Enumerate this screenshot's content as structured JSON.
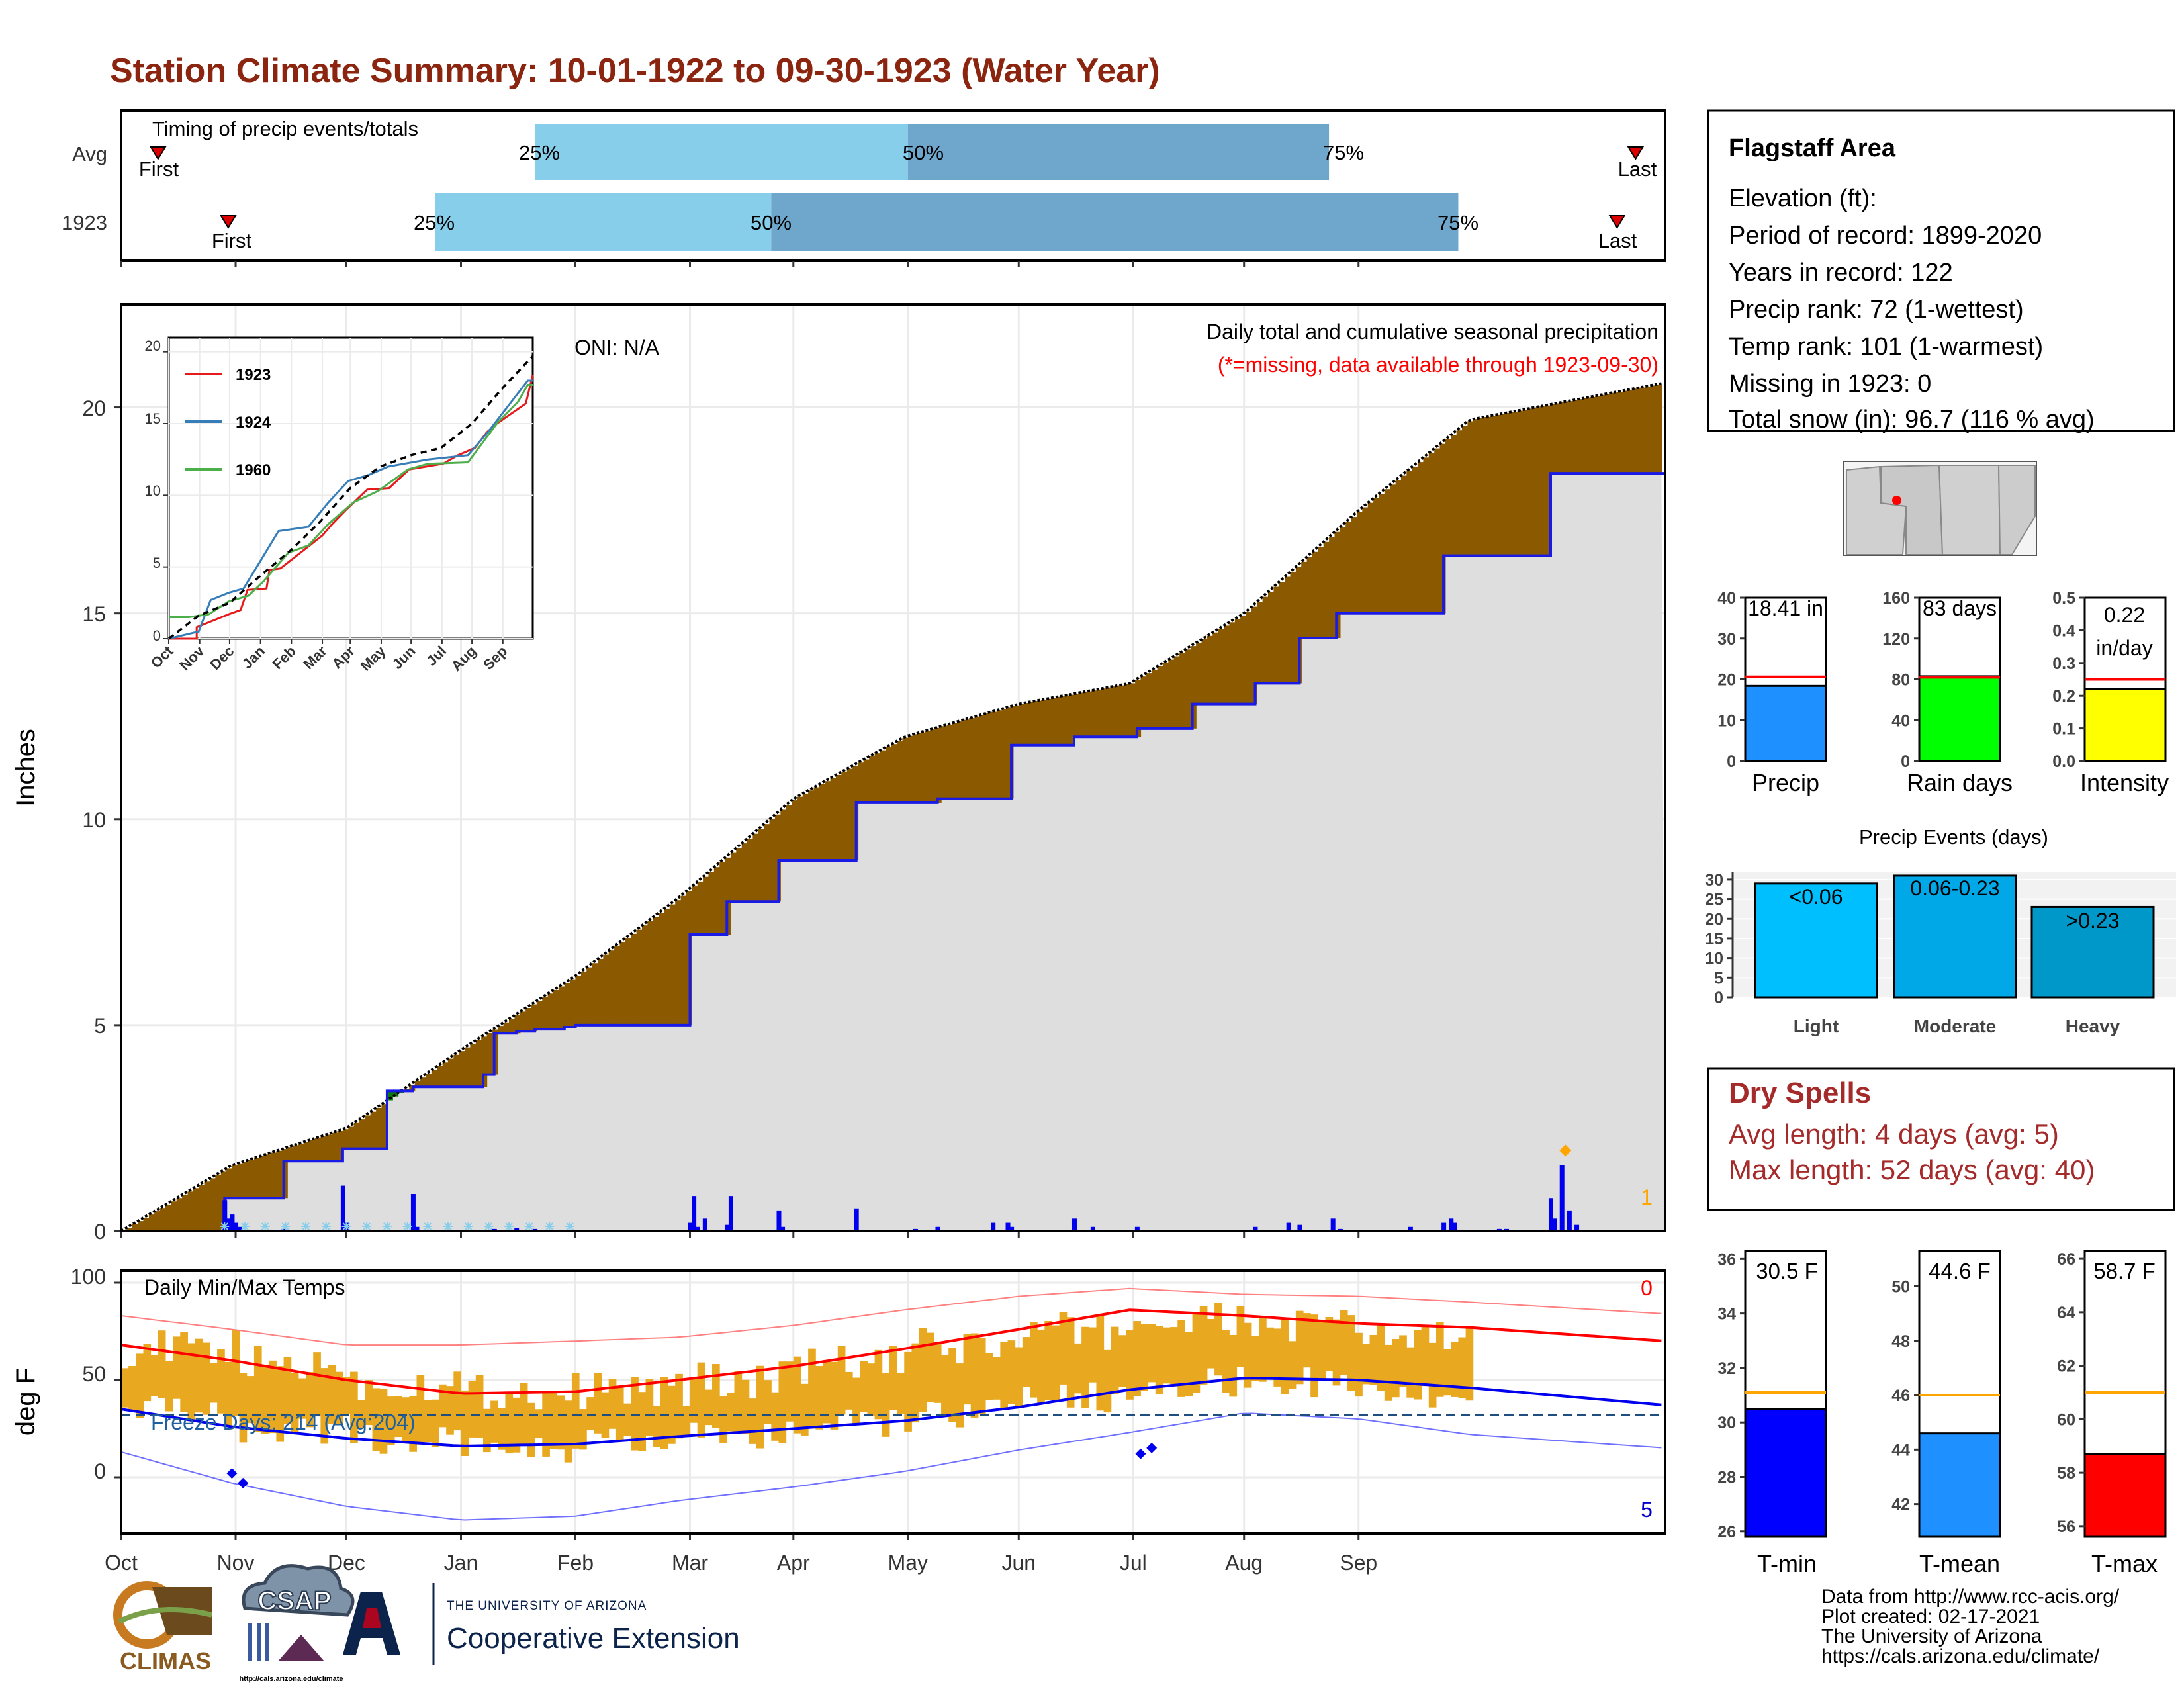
{
  "title": "Station Climate Summary: 10-01-1922 to 09-30-1923 (Water Year)",
  "colors": {
    "title": "#8b2510",
    "cum_current": "#1a1ae6",
    "surplus": "#0a7a0a",
    "deficit": "#8b5a00",
    "area_fill": "#dedede",
    "timing_light": "#87ceeb",
    "timing_dark": "#6fa6cc",
    "temp_bar": "#e8a820",
    "precip_bar": "#1e90ff",
    "raindays_bar": "#00ff00",
    "intensity_bar": "#ffff00",
    "tmin_bar": "#0000ff",
    "tmean_bar": "#1e90ff",
    "tmax_bar": "#ff0000",
    "light": "#00bfff",
    "moderate": "#00a8e8",
    "heavy": "#0098c8"
  },
  "timing": {
    "title": "Timing of precip events/totals",
    "rows": [
      {
        "label": "Avg",
        "first": "First",
        "last": "Last",
        "q25": "25%",
        "q50": "50%",
        "q75": "75%",
        "first_day": 10,
        "q25_day": 112,
        "q50_day": 213,
        "q75_day": 327,
        "last_day": 410
      },
      {
        "label": "1923",
        "first": "First",
        "last": "Last",
        "q25": "25%",
        "q50": "50%",
        "q75": "75%",
        "first_day": 29,
        "q25_day": 85,
        "q50_day": 176,
        "q75_day": 362,
        "last_day": 405
      }
    ]
  },
  "main": {
    "oni": "ONI: N/A",
    "caption": "Daily total and cumulative seasonal precipitation",
    "missing_note": "(*=missing, data available through 1923-09-30)",
    "ylabel": "Inches",
    "yticks": [
      "0",
      "5",
      "10",
      "15",
      "20"
    ],
    "months": [
      "Oct",
      "Nov",
      "Dec",
      "Jan",
      "Feb",
      "Mar",
      "Apr",
      "May",
      "Jun",
      "Jul",
      "Aug",
      "Sep"
    ],
    "right_count": "1"
  },
  "chart_data": [
    {
      "type": "area",
      "title": "Daily total and cumulative seasonal precipitation",
      "ylabel": "Inches",
      "ylim": [
        0,
        22.5
      ],
      "x_units": "day of water year (Oct 1 = 0)",
      "series": [
        {
          "name": "cumulative 1923",
          "x": [
            0,
            28,
            28,
            44,
            44,
            60,
            60,
            72,
            72,
            79,
            79,
            98,
            98,
            101,
            101,
            107,
            107,
            112,
            112,
            120,
            120,
            123,
            123,
            154,
            154,
            164,
            164,
            178,
            178,
            199,
            199,
            221,
            221,
            241,
            241,
            258,
            258,
            275,
            275,
            290,
            290,
            307,
            307,
            319,
            319,
            329,
            329,
            358,
            358,
            387,
            387,
            392,
            392,
            418
          ],
          "y": [
            0,
            0,
            0.8,
            0.8,
            1.7,
            1.7,
            2.0,
            2.0,
            3.4,
            3.4,
            3.5,
            3.5,
            3.8,
            3.8,
            4.8,
            4.8,
            4.85,
            4.85,
            4.9,
            4.9,
            4.95,
            4.95,
            5.0,
            5.0,
            7.2,
            7.2,
            8.0,
            8.0,
            9.0,
            9.0,
            10.4,
            10.4,
            10.5,
            10.5,
            11.8,
            11.8,
            12.0,
            12.0,
            12.2,
            12.2,
            12.8,
            12.8,
            13.3,
            13.3,
            14.4,
            14.4,
            15.0,
            15.0,
            16.4,
            16.4,
            18.4,
            18.4,
            18.4,
            18.4
          ]
        },
        {
          "name": "average cumulative",
          "x": [
            0,
            30,
            61,
            92,
            123,
            151,
            182,
            212,
            243,
            273,
            304,
            335,
            365,
            418
          ],
          "y": [
            0,
            1.6,
            2.5,
            4.4,
            6.2,
            8.1,
            10.5,
            12.0,
            12.8,
            13.3,
            15.0,
            17.5,
            19.7,
            20.6
          ]
        }
      ],
      "daily": {
        "x": [
          28,
          29,
          30,
          31,
          32,
          44,
          60,
          61,
          79,
          80,
          101,
          107,
          112,
          154,
          155,
          156,
          158,
          164,
          165,
          178,
          179,
          199,
          215,
          221,
          236,
          240,
          241,
          258,
          263,
          275,
          307,
          316,
          319,
          328,
          330,
          349,
          358,
          360,
          361,
          373,
          375,
          387,
          388,
          390,
          392,
          394
        ],
        "y": [
          0.75,
          0.3,
          0.4,
          0.2,
          0.1,
          0.05,
          1.1,
          0.2,
          0.9,
          0.1,
          0.05,
          0.08,
          0.05,
          0.2,
          0.85,
          0.1,
          0.3,
          0.15,
          0.85,
          0.5,
          0.1,
          0.55,
          0.05,
          0.1,
          0.2,
          0.2,
          0.1,
          0.3,
          0.1,
          0.1,
          0.1,
          0.2,
          0.15,
          0.3,
          0.05,
          0.1,
          0.2,
          0.3,
          0.2,
          0.05,
          0.05,
          0.8,
          0.3,
          1.6,
          0.5,
          0.15
        ]
      }
    },
    {
      "type": "line",
      "title": "",
      "xlabel": "",
      "ylabel": "",
      "categories": [
        "Oct",
        "Nov",
        "Dec",
        "Jan",
        "Feb",
        "Mar",
        "Apr",
        "May",
        "Jun",
        "Jul",
        "Aug",
        "Sep"
      ],
      "xlim": [
        0,
        365
      ],
      "ylim": [
        0,
        21
      ],
      "yticks": [
        0,
        5,
        10,
        15,
        20
      ],
      "series": [
        {
          "name": "1923",
          "x": [
            0,
            28,
            28,
            60,
            72,
            79,
            98,
            101,
            112,
            154,
            164,
            178,
            199,
            221,
            241,
            258,
            275,
            290,
            307,
            319,
            329,
            358,
            365
          ],
          "y": [
            0,
            0,
            0.8,
            1.7,
            2.0,
            3.4,
            3.5,
            4.8,
            4.9,
            7.2,
            8.0,
            9.0,
            10.4,
            10.5,
            11.8,
            12.0,
            12.2,
            12.8,
            13.3,
            14.4,
            15.0,
            16.4,
            18.4
          ]
        },
        {
          "name": "1924",
          "x": [
            0,
            30,
            42,
            60,
            75,
            90,
            110,
            140,
            160,
            180,
            200,
            220,
            260,
            300,
            320,
            340,
            360,
            365
          ],
          "y": [
            0,
            0.5,
            2.7,
            3.2,
            3.5,
            5.2,
            7.5,
            7.8,
            9.5,
            11.0,
            11.4,
            12.0,
            12.5,
            12.8,
            14.4,
            16.2,
            18.0,
            18.0
          ]
        },
        {
          "name": "1960",
          "x": [
            0,
            20,
            40,
            60,
            80,
            95,
            120,
            140,
            160,
            185,
            210,
            240,
            260,
            300,
            330,
            350,
            360,
            365
          ],
          "y": [
            1.5,
            1.5,
            1.7,
            2.6,
            3.0,
            4.0,
            6.0,
            6.5,
            8.0,
            9.5,
            10.3,
            11.8,
            12.2,
            12.3,
            15.1,
            16.5,
            17.7,
            17.7
          ]
        },
        {
          "name": "Avg",
          "x": [
            0,
            30,
            61,
            92,
            123,
            151,
            182,
            212,
            243,
            273,
            304,
            335,
            365
          ],
          "y": [
            0,
            1.6,
            2.5,
            4.4,
            6.2,
            8.1,
            10.5,
            12.0,
            12.8,
            13.3,
            15.0,
            17.5,
            19.7
          ]
        }
      ]
    },
    {
      "type": "bar",
      "title": "Daily Min/Max Temps",
      "ylabel": "deg F",
      "ylim": [
        -25,
        100
      ],
      "categories": [
        "Oct",
        "Nov",
        "Dec",
        "Jan",
        "Feb",
        "Mar",
        "Apr",
        "May",
        "Jun",
        "Jul",
        "Aug",
        "Sep"
      ],
      "series": [
        {
          "name": "monthly mean daily max",
          "values": [
            66,
            58,
            48,
            44,
            45,
            50,
            58,
            67,
            75,
            80,
            78,
            72
          ]
        },
        {
          "name": "monthly mean daily min",
          "values": [
            34,
            25,
            19,
            15,
            17,
            21,
            27,
            33,
            41,
            49,
            49,
            42
          ]
        },
        {
          "name": "Avg Tmax",
          "x": [
            0,
            30,
            61,
            92,
            123,
            151,
            182,
            212,
            243,
            273,
            304,
            335,
            365,
            418
          ],
          "y": [
            68,
            60,
            50,
            43,
            44,
            50,
            57,
            66,
            76,
            86,
            83,
            79,
            77,
            70
          ]
        },
        {
          "name": "Avg Tmin",
          "x": [
            0,
            30,
            61,
            92,
            123,
            151,
            182,
            212,
            243,
            273,
            304,
            335,
            365,
            418
          ],
          "y": [
            35,
            26,
            20,
            16,
            17,
            21,
            25,
            29,
            36,
            45,
            51,
            50,
            46,
            37
          ]
        },
        {
          "name": "Record high",
          "x": [
            0,
            30,
            61,
            92,
            123,
            151,
            182,
            212,
            243,
            273,
            304,
            335,
            365,
            418
          ],
          "y": [
            83,
            76,
            68,
            68,
            70,
            72,
            78,
            86,
            93,
            97,
            94,
            93,
            90,
            84
          ]
        },
        {
          "name": "Record low",
          "x": [
            0,
            30,
            61,
            92,
            123,
            151,
            182,
            212,
            243,
            273,
            304,
            335,
            365,
            418
          ],
          "y": [
            13,
            -3,
            -15,
            -22,
            -20,
            -12,
            -5,
            3,
            14,
            23,
            33,
            30,
            22,
            15
          ]
        }
      ],
      "freeze_line": 32,
      "freeze_days_label": "Freeze Days: 214 (Avg:204)",
      "count_top": "0",
      "count_bottom": "5"
    },
    {
      "type": "bar",
      "title": "",
      "categories": [
        "Precip",
        "Rain days",
        "Intensity"
      ],
      "values": [
        18.41,
        83,
        0.22
      ],
      "avg": [
        20.6,
        82,
        0.25
      ],
      "ylims": [
        [
          0,
          40
        ],
        [
          0,
          160
        ],
        [
          0,
          0.5
        ]
      ]
    },
    {
      "type": "bar",
      "title": "Precip Events (days)",
      "categories": [
        "Light",
        "Moderate",
        "Heavy"
      ],
      "values": [
        29,
        31,
        23
      ],
      "ylim": [
        0,
        32
      ]
    },
    {
      "type": "bar",
      "title": "",
      "categories": [
        "T-min",
        "T-mean",
        "T-max"
      ],
      "values": [
        30.5,
        44.6,
        58.7
      ],
      "avg": [
        31.1,
        46.0,
        61.0
      ],
      "ylims": [
        [
          25.8,
          36.3
        ],
        [
          40.8,
          51.3
        ],
        [
          55.6,
          66.3
        ]
      ]
    }
  ],
  "temps": {
    "title": "Daily Min/Max Temps",
    "ylabel": "deg F",
    "yticks": [
      "100",
      "50",
      "0"
    ],
    "freeze_label": "Freeze Days: 214 (Avg:204)",
    "count_top": "0",
    "count_bottom": "5"
  },
  "inset": {
    "yticks": [
      "0",
      "5",
      "10",
      "15",
      "20"
    ],
    "months": [
      "Oct",
      "Nov",
      "Dec",
      "Jan",
      "Feb",
      "Mar",
      "Apr",
      "May",
      "Jun",
      "Jul",
      "Aug",
      "Sep"
    ],
    "legend": [
      "1923",
      "1924",
      "1960"
    ]
  },
  "info": {
    "station": "Flagstaff Area",
    "lines": [
      "Elevation (ft):",
      "Period of record: 1899-2020",
      "Years in record: 122",
      "Precip rank: 72 (1-wettest)",
      "Temp rank: 101 (1-warmest)",
      "Missing in 1923: 0",
      "Total snow (in): 96.7 (116 % avg)"
    ]
  },
  "stats": {
    "precip": {
      "label": "Precip",
      "value_text": "18.41 in",
      "ticks": [
        "40",
        "30",
        "20",
        "10",
        "0"
      ]
    },
    "raindays": {
      "label": "Rain days",
      "value_text": "83 days",
      "ticks": [
        "160",
        "120",
        "80",
        "40",
        "0"
      ]
    },
    "intensity": {
      "label": "Intensity",
      "value_text": "0.22",
      "value_unit": "in/day",
      "ticks": [
        "0.5",
        "0.4",
        "0.3",
        "0.2",
        "0.1",
        "0.0"
      ]
    }
  },
  "events": {
    "title": "Precip Events (days)",
    "ticks": [
      "30",
      "25",
      "20",
      "15",
      "10",
      "5",
      "0"
    ],
    "bars": [
      {
        "label": "Light",
        "value_label": "<0.06"
      },
      {
        "label": "Moderate",
        "value_label": "0.06-0.23"
      },
      {
        "label": "Heavy",
        "value_label": ">0.23"
      }
    ]
  },
  "dry_spells": {
    "title": "Dry Spells",
    "avg_line": "Avg length: 4 days (avg: 5)",
    "max_line": "Max length: 52 days (avg: 40)"
  },
  "tempbars": {
    "tmin": {
      "label": "T-min",
      "value_text": "30.5 F",
      "ticks": [
        "36",
        "34",
        "32",
        "30",
        "28",
        "26"
      ]
    },
    "tmean": {
      "label": "T-mean",
      "value_text": "44.6 F",
      "ticks": [
        "50",
        "48",
        "46",
        "44",
        "42"
      ]
    },
    "tmax": {
      "label": "T-max",
      "value_text": "58.7 F",
      "ticks": [
        "66",
        "64",
        "62",
        "60",
        "58",
        "56"
      ]
    }
  },
  "footer": {
    "lines": [
      "Data from http://www.rcc-acis.org/",
      "Plot created: 02-17-2021",
      "The University of Arizona",
      "https://cals.arizona.edu/climate/"
    ],
    "climas": "CLIMAS",
    "csap": "CSAP",
    "csap_url": "http://cals.arizona.edu/climate",
    "ua_small": "THE UNIVERSITY OF ARIZONA",
    "ua_big": "Cooperative Extension"
  }
}
